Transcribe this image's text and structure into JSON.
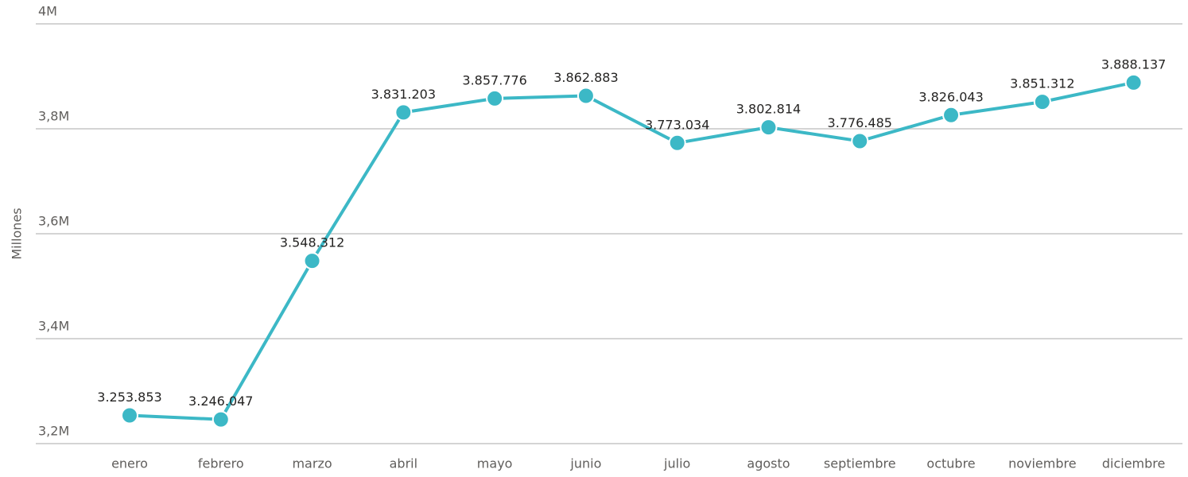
{
  "chart_data": {
    "type": "line",
    "y_label": "Millones",
    "categories": [
      "enero",
      "febrero",
      "marzo",
      "abril",
      "mayo",
      "junio",
      "julio",
      "agosto",
      "septiembre",
      "octubre",
      "noviembre",
      "diciembre"
    ],
    "values": [
      3253853,
      3246047,
      3548312,
      3831203,
      3857776,
      3862883,
      3773034,
      3802814,
      3776485,
      3826043,
      3851312,
      3888137
    ],
    "value_labels": [
      "3.253.853",
      "3.246.047",
      "3.548.312",
      "3.831.203",
      "3.857.776",
      "3.862.883",
      "3.773.034",
      "3.802.814",
      "3.776.485",
      "3.826.043",
      "3.851.312",
      "3.888.137"
    ],
    "color": "#3cb8c6",
    "ylim": [
      3200000,
      4000000
    ],
    "yticks": [
      {
        "value": 3200000,
        "label": "3,2M"
      },
      {
        "value": 3400000,
        "label": "3,4M"
      },
      {
        "value": 3600000,
        "label": "3,6M"
      },
      {
        "value": 3800000,
        "label": "3,8M"
      },
      {
        "value": 4000000,
        "label": "4M"
      }
    ],
    "grid": true
  }
}
